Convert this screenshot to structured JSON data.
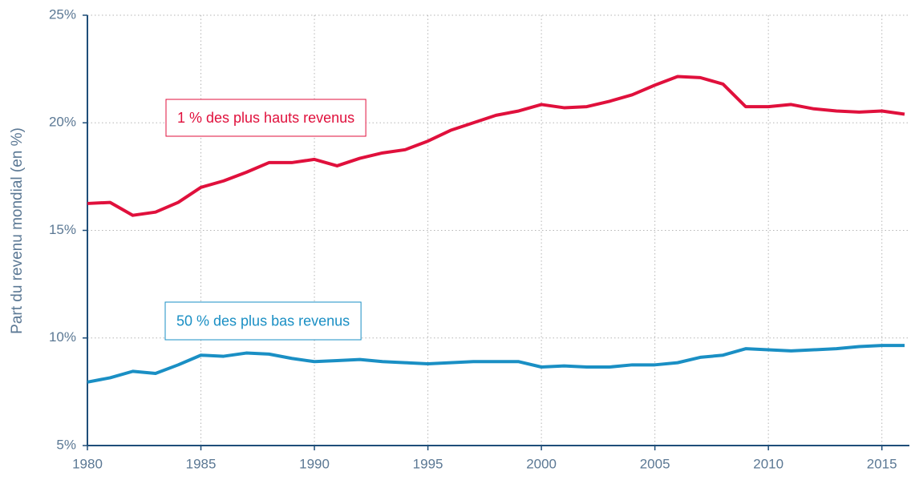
{
  "chart_data": {
    "type": "line",
    "y_label": "Part du revenu mondial (en %)",
    "x": [
      1980,
      1981,
      1982,
      1983,
      1984,
      1985,
      1986,
      1987,
      1988,
      1989,
      1990,
      1991,
      1992,
      1993,
      1994,
      1995,
      1996,
      1997,
      1998,
      1999,
      2000,
      2001,
      2002,
      2003,
      2004,
      2005,
      2006,
      2007,
      2008,
      2009,
      2010,
      2011,
      2012,
      2013,
      2014,
      2015,
      2016
    ],
    "series": [
      {
        "name": "1 % des plus hauts revenus",
        "color": "#e0103c",
        "values": [
          16.25,
          16.3,
          15.7,
          15.85,
          16.3,
          17.0,
          17.3,
          17.7,
          18.15,
          18.15,
          18.3,
          18.0,
          18.35,
          18.6,
          18.75,
          19.15,
          19.65,
          20.0,
          20.35,
          20.55,
          20.85,
          20.7,
          20.75,
          21.0,
          21.3,
          21.75,
          22.15,
          22.1,
          21.8,
          20.75,
          20.75,
          20.85,
          20.65,
          20.55,
          20.5,
          20.55,
          20.4
        ]
      },
      {
        "name": "50 % des plus bas revenus",
        "color": "#1a8fc4",
        "values": [
          7.95,
          8.15,
          8.45,
          8.35,
          8.75,
          9.2,
          9.15,
          9.3,
          9.25,
          9.05,
          8.9,
          8.95,
          9.0,
          8.9,
          8.85,
          8.8,
          8.85,
          8.9,
          8.9,
          8.9,
          8.65,
          8.7,
          8.65,
          8.65,
          8.75,
          8.75,
          8.85,
          9.1,
          9.2,
          9.5,
          9.45,
          9.4,
          9.45,
          9.5,
          9.6,
          9.65,
          9.65
        ]
      }
    ],
    "xlim": [
      1980,
      2016
    ],
    "xticks": [
      1980,
      1985,
      1990,
      1995,
      2000,
      2005,
      2010,
      2015
    ],
    "ylim": [
      5,
      25
    ],
    "yticks": [
      {
        "value": 5,
        "label": "5%"
      },
      {
        "value": 10,
        "label": "10%"
      },
      {
        "value": 15,
        "label": "15%"
      },
      {
        "value": 20,
        "label": "20%"
      },
      {
        "value": 25,
        "label": "25%"
      }
    ],
    "grid": true
  }
}
